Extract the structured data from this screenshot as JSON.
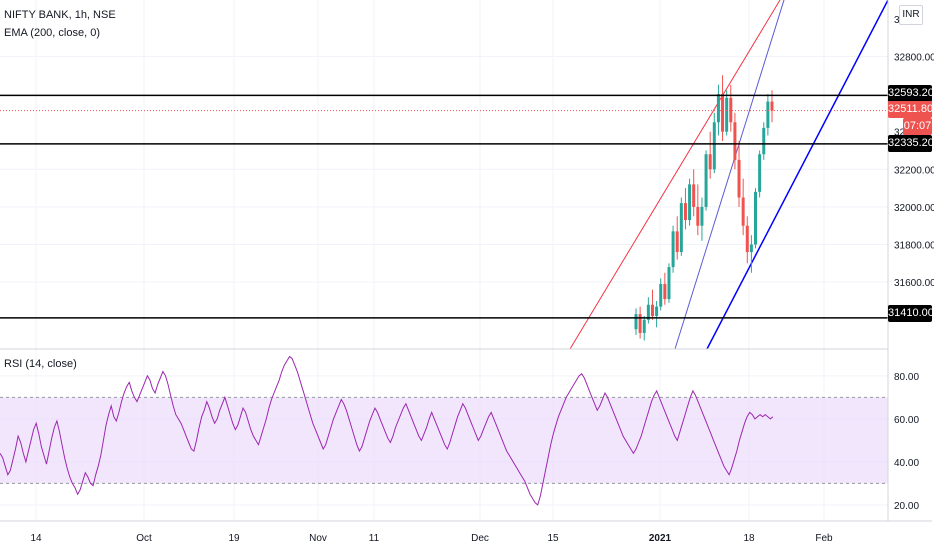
{
  "header": {
    "symbol_line": "NIFTY BANK, 1h, NSE",
    "indicator_line": "EMA (200, close, 0)",
    "currency": "INR",
    "rsi_label": "RSI (14, close)"
  },
  "price_axis": {
    "ticks": [
      "32800.00",
      "32200.00",
      "32000.00",
      "31800.00",
      "31600.00"
    ],
    "partial_top_label": "32",
    "partial_mid_label": "32"
  },
  "rsi_axis": {
    "ticks": [
      "80.00",
      "60.00",
      "40.00",
      "20.00"
    ]
  },
  "time_axis": {
    "labels": [
      "14",
      "Oct",
      "19",
      "Nov",
      "11",
      "Dec",
      "15",
      "2021",
      "18",
      "Feb"
    ]
  },
  "levels": [
    {
      "value": 32593.2,
      "label": "32593.20",
      "color": "#000000"
    },
    {
      "value": 32335.2,
      "label": "32335.20",
      "color": "#000000"
    },
    {
      "value": 31410.0,
      "label": "31410.00",
      "color": "#000000"
    }
  ],
  "last_price": {
    "value": 32511.8,
    "label": "32511.80",
    "countdown": "07:07",
    "color": "#ef5350"
  },
  "colors": {
    "up": "#26a69a",
    "down": "#ef5350",
    "rsi_line": "#9c27b0",
    "rsi_band": "#e9d5fb",
    "red_channel": "#f23645",
    "blue_channel": "#0000ff",
    "blue_channel_thin": "#5b5bd6",
    "grid": "#f0f3fa"
  },
  "chart_data": [
    {
      "type": "candlestick",
      "title": "NIFTY BANK, 1h, NSE",
      "ylim": [
        31250,
        33100
      ],
      "candles": [
        [
          31350,
          31460,
          31320,
          31430
        ],
        [
          31430,
          31470,
          31300,
          31330
        ],
        [
          31330,
          31420,
          31290,
          31400
        ],
        [
          31400,
          31520,
          31380,
          31480
        ],
        [
          31480,
          31560,
          31400,
          31420
        ],
        [
          31420,
          31500,
          31360,
          31470
        ],
        [
          31470,
          31620,
          31450,
          31590
        ],
        [
          31590,
          31650,
          31480,
          31510
        ],
        [
          31510,
          31700,
          31490,
          31680
        ],
        [
          31680,
          31900,
          31650,
          31870
        ],
        [
          31870,
          31950,
          31720,
          31760
        ],
        [
          31760,
          32050,
          31740,
          32020
        ],
        [
          32020,
          32100,
          31880,
          31930
        ],
        [
          31930,
          32150,
          31900,
          32120
        ],
        [
          32120,
          32200,
          31950,
          32000
        ],
        [
          32000,
          32120,
          31850,
          31900
        ],
        [
          31900,
          32050,
          31820,
          32000
        ],
        [
          32000,
          32300,
          31980,
          32280
        ],
        [
          32280,
          32400,
          32150,
          32200
        ],
        [
          32200,
          32500,
          32180,
          32450
        ],
        [
          32450,
          32650,
          32380,
          32600
        ],
        [
          32600,
          32700,
          32350,
          32400
        ],
        [
          32400,
          32620,
          32380,
          32580
        ],
        [
          32580,
          32650,
          32400,
          32450
        ],
        [
          32450,
          32500,
          32200,
          32250
        ],
        [
          32250,
          32350,
          32000,
          32050
        ],
        [
          32050,
          32150,
          31850,
          31900
        ],
        [
          31900,
          31950,
          31700,
          31760
        ],
        [
          31760,
          31850,
          31650,
          31800
        ],
        [
          31800,
          32100,
          31780,
          32080
        ],
        [
          32080,
          32300,
          32050,
          32280
        ],
        [
          32280,
          32450,
          32250,
          32420
        ],
        [
          32420,
          32600,
          32380,
          32560
        ],
        [
          32560,
          32620,
          32450,
          32511.8
        ]
      ]
    },
    {
      "type": "line",
      "title": "RSI (14, close)",
      "ylim": [
        13,
        92
      ],
      "band": [
        30,
        70
      ],
      "values": [
        44,
        42,
        38,
        34,
        36,
        41,
        46,
        52,
        49,
        44,
        40,
        45,
        50,
        55,
        58,
        53,
        47,
        43,
        39,
        45,
        51,
        56,
        59,
        54,
        48,
        42,
        37,
        33,
        30,
        28,
        25,
        27,
        31,
        35,
        33,
        30,
        29,
        34,
        38,
        43,
        50,
        57,
        62,
        66,
        61,
        59,
        63,
        68,
        72,
        75,
        77,
        73,
        70,
        68,
        71,
        74,
        77,
        80,
        78,
        74,
        72,
        76,
        79,
        82,
        80,
        76,
        71,
        66,
        62,
        60,
        58,
        55,
        52,
        49,
        46,
        45,
        50,
        56,
        61,
        64,
        68,
        65,
        61,
        58,
        60,
        64,
        67,
        70,
        66,
        62,
        58,
        55,
        57,
        61,
        65,
        63,
        59,
        55,
        52,
        50,
        48,
        52,
        56,
        60,
        65,
        69,
        72,
        75,
        78,
        82,
        85,
        87,
        89,
        88,
        85,
        82,
        78,
        74,
        70,
        66,
        62,
        58,
        55,
        52,
        49,
        46,
        48,
        52,
        56,
        60,
        63,
        66,
        69,
        67,
        64,
        60,
        56,
        52,
        48,
        45,
        47,
        51,
        55,
        59,
        62,
        65,
        63,
        60,
        57,
        54,
        51,
        49,
        52,
        56,
        59,
        62,
        65,
        67,
        64,
        61,
        58,
        55,
        52,
        50,
        53,
        56,
        60,
        63,
        60,
        57,
        54,
        51,
        48,
        46,
        49,
        53,
        57,
        61,
        64,
        67,
        65,
        62,
        59,
        56,
        53,
        50,
        52,
        55,
        58,
        61,
        63,
        60,
        57,
        54,
        51,
        48,
        45,
        43,
        41,
        39,
        37,
        35,
        33,
        31,
        28,
        25,
        23,
        21,
        20,
        24,
        30,
        36,
        42,
        48,
        53,
        57,
        61,
        64,
        67,
        70,
        72,
        74,
        76,
        78,
        80,
        81,
        79,
        76,
        73,
        70,
        67,
        64,
        66,
        69,
        72,
        70,
        67,
        64,
        61,
        58,
        55,
        52,
        50,
        48,
        46,
        44,
        46,
        49,
        52,
        56,
        60,
        64,
        68,
        71,
        73,
        70,
        67,
        64,
        61,
        58,
        55,
        52,
        50,
        54,
        58,
        62,
        66,
        70,
        73,
        71,
        68,
        65,
        62,
        59,
        56,
        53,
        50,
        47,
        44,
        41,
        38,
        36,
        34,
        37,
        41,
        45,
        50,
        54,
        58,
        61,
        63,
        62,
        60,
        61,
        62,
        61,
        62,
        61,
        60,
        61
      ]
    }
  ]
}
